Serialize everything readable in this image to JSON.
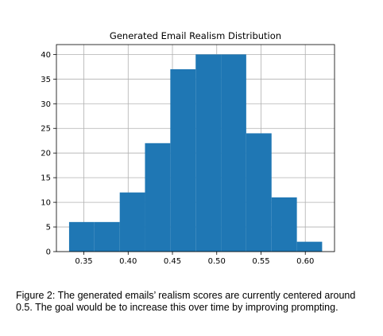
{
  "chart_data": {
    "type": "bar",
    "subtype": "histogram",
    "title": "Generated Email Realism Distribution",
    "xlabel": "",
    "ylabel": "",
    "bin_edges": [
      0.3333,
      0.3619,
      0.3905,
      0.419,
      0.4476,
      0.4762,
      0.5048,
      0.5333,
      0.5619,
      0.5905,
      0.619
    ],
    "values": [
      6,
      6,
      12,
      22,
      37,
      40,
      40,
      24,
      11,
      2
    ],
    "xlim": [
      0.319,
      0.633
    ],
    "ylim": [
      0,
      42
    ],
    "x_ticks": [
      0.35,
      0.4,
      0.45,
      0.5,
      0.55,
      0.6
    ],
    "x_tick_labels": [
      "0.35",
      "0.40",
      "0.45",
      "0.50",
      "0.55",
      "0.60"
    ],
    "y_ticks": [
      0,
      5,
      10,
      15,
      20,
      25,
      30,
      35,
      40
    ],
    "y_tick_labels": [
      "0",
      "5",
      "10",
      "15",
      "20",
      "25",
      "30",
      "35",
      "40"
    ],
    "grid": true,
    "colors": {
      "bar": "#1f77b4",
      "grid": "#b0b0b0",
      "axis": "#000000"
    }
  },
  "caption": "Figure 2: The generated emails’ realism scores are currently centered around 0.5. The goal would be to increase this over time by improving prompting."
}
